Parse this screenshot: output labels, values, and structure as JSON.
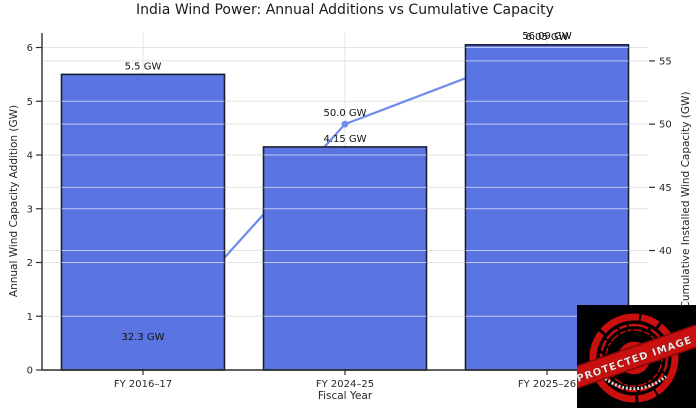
{
  "chart_data": {
    "type": "bar",
    "title": "India Wind Power: Annual Additions vs Cumulative Capacity",
    "xlabel": "Fiscal Year",
    "ylabel": "Annual Wind Capacity Addition (GW)",
    "ylabel_right": "Cumulative Installed Wind Capacity (GW)",
    "categories": [
      "FY 2016–17",
      "FY 2024–25",
      "FY 2025–26"
    ],
    "series": [
      {
        "name": "Annual Wind Capacity Addition (GW)",
        "type": "bar",
        "axis": "left",
        "values": [
          5.5,
          4.15,
          6.05
        ],
        "labels": [
          "5.5 GW",
          "4.15 GW",
          "6.05 GW"
        ],
        "color": "#5a75e1",
        "edge_color": "#1a1e30"
      },
      {
        "name": "Cumulative Installed Wind Capacity (GW)",
        "type": "line",
        "axis": "right",
        "values": [
          32.3,
          50.0,
          56.09
        ],
        "labels": [
          "32.3 GW",
          "50.0 GW",
          "56.09 GW"
        ],
        "color": "#6e8cee"
      }
    ],
    "yticks_left": [
      0,
      1,
      2,
      3,
      4,
      5,
      6
    ],
    "yticks_right": [
      40,
      45,
      50,
      55
    ],
    "ylim_left": [
      0,
      6.27
    ],
    "ylim_right": [
      30.55,
      57.21
    ],
    "grid": true,
    "legend": false
  },
  "watermark": {
    "text": "PROTECTED IMAGE"
  }
}
